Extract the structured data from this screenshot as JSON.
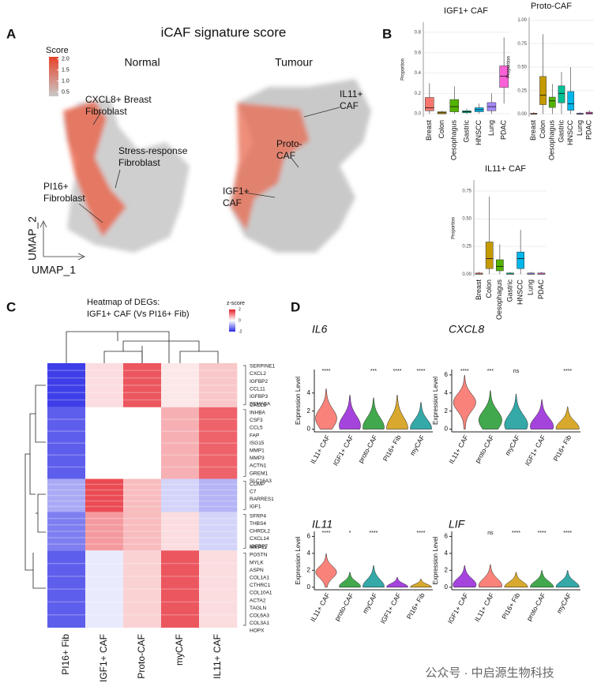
{
  "panel_labels": [
    "A",
    "B",
    "C",
    "D"
  ],
  "watermark": "公众号 · 中启源生物科技",
  "chart_data": [
    {
      "type": "scatter",
      "title": "iCAF signature score",
      "panels": [
        "Normal",
        "Tumour"
      ],
      "xlabel": "UMAP_1",
      "ylabel": "UMAP_2",
      "colorbar_title": "Score",
      "clim": [
        0.3,
        2.1
      ],
      "colorbar_ticks": [
        {
          "value": 0.5,
          "label": "0.5"
        },
        {
          "value": 1.0,
          "label": "1.0"
        },
        {
          "value": 1.5,
          "label": "1.5"
        },
        {
          "value": 2.0,
          "label": "2.0"
        }
      ],
      "colors": [
        "#c8c8c8",
        "#e8432a"
      ],
      "annotations": [
        [
          "CXCL8+ Breast",
          "Fibroblast"
        ],
        [
          "Stress-response",
          "Fibroblast"
        ],
        [
          "PI16+",
          "Fibroblast"
        ],
        [
          "IL11+",
          "CAF"
        ],
        [
          "Proto-",
          "CAF"
        ],
        [
          "IGF1+",
          "CAF"
        ]
      ]
    },
    {
      "type": "box",
      "title": "IGF1+ CAF",
      "ylabel": "Proportion",
      "categories": [
        "Breast",
        "Colon",
        "Oesophagus",
        "Gastric",
        "HNSCC",
        "Lung",
        "PDAC"
      ],
      "colors": [
        "#F8766D",
        "#C49A00",
        "#53B400",
        "#00C094",
        "#00B6EB",
        "#A58AFF",
        "#FB61D7"
      ],
      "ylim": [
        -0.03,
        0.9
      ],
      "yticks": [
        {
          "value": 0,
          "label": "0.0"
        },
        {
          "value": 0.2,
          "label": "0.2"
        },
        {
          "value": 0.4,
          "label": "0.4"
        },
        {
          "value": 0.6,
          "label": "0.6"
        },
        {
          "value": 0.8,
          "label": "0.8"
        }
      ],
      "whisker_low": [
        0,
        0,
        0,
        0,
        0,
        0,
        0.1
      ],
      "q1": [
        0.03,
        0,
        0.02,
        0.01,
        0.02,
        0.03,
        0.26
      ],
      "median": [
        0.06,
        0.01,
        0.07,
        0.02,
        0.04,
        0.07,
        0.37
      ],
      "q3": [
        0.16,
        0.02,
        0.14,
        0.03,
        0.06,
        0.11,
        0.47
      ],
      "whisker_high": [
        0.3,
        0.03,
        0.27,
        0.05,
        0.1,
        0.2,
        0.75
      ]
    },
    {
      "type": "box",
      "title": "Proto-CAF",
      "ylabel": "Proportion",
      "categories": [
        "Breast",
        "Colon",
        "Oesophagus",
        "Gastric",
        "HNSCC",
        "Lung",
        "PDAC"
      ],
      "colors": [
        "#F8766D",
        "#C49A00",
        "#53B400",
        "#00C094",
        "#00B6EB",
        "#A58AFF",
        "#FB61D7"
      ],
      "ylim": [
        -0.03,
        1.03
      ],
      "yticks": [
        {
          "value": 0,
          "label": "0.00"
        },
        {
          "value": 0.25,
          "label": "0.25"
        },
        {
          "value": 0.5,
          "label": "0.50"
        },
        {
          "value": 0.75,
          "label": "0.75"
        },
        {
          "value": 1,
          "label": "1.00"
        }
      ],
      "whisker_low": [
        0,
        0,
        0,
        0,
        0,
        0,
        0
      ],
      "q1": [
        0,
        0.1,
        0.07,
        0.12,
        0.04,
        0,
        0
      ],
      "median": [
        0,
        0.2,
        0.14,
        0.22,
        0.11,
        0,
        0.01
      ],
      "q3": [
        0.01,
        0.4,
        0.18,
        0.3,
        0.24,
        0.01,
        0.02
      ],
      "whisker_high": [
        0.02,
        0.85,
        0.32,
        0.45,
        0.5,
        0.02,
        0.04
      ]
    },
    {
      "type": "box",
      "title": "IL11+ CAF",
      "ylabel": "Proportion",
      "categories": [
        "Breast",
        "Colon",
        "Oesophagus",
        "Gastric",
        "HNSCC",
        "Lung",
        "PDAC"
      ],
      "colors": [
        "#F8766D",
        "#C49A00",
        "#53B400",
        "#00C094",
        "#00B6EB",
        "#A58AFF",
        "#FB61D7"
      ],
      "ylim": [
        -0.02,
        0.85
      ],
      "yticks": [
        {
          "value": 0,
          "label": "0.00"
        },
        {
          "value": 0.25,
          "label": "0.25"
        },
        {
          "value": 0.5,
          "label": "0.50"
        },
        {
          "value": 0.75,
          "label": "0.75"
        }
      ],
      "whisker_low": [
        0,
        0,
        0,
        0,
        0,
        0,
        0
      ],
      "q1": [
        0,
        0.05,
        0.03,
        0,
        0.05,
        0,
        0
      ],
      "median": [
        0,
        0.14,
        0.07,
        0,
        0.14,
        0,
        0
      ],
      "q3": [
        0.01,
        0.29,
        0.13,
        0.01,
        0.2,
        0.01,
        0.01
      ],
      "whisker_high": [
        0.02,
        0.7,
        0.27,
        0.02,
        0.4,
        0.02,
        0.02
      ]
    },
    {
      "type": "heatmap",
      "title": [
        "Heatmap of DEGs:",
        "IGF1+ CAF (Vs PI16+ Fib)"
      ],
      "columns": [
        "PI16+ Fib",
        "IGF1+ CAF",
        "Proto-CAF",
        "myCAF",
        "IL11+ CAF"
      ],
      "colorbar_title": "z-score",
      "zticks": [
        2,
        0,
        -2
      ],
      "row_clusters": [
        {
          "genes": [
            "SERPINE1",
            "CXCL2",
            "IGFBP2",
            "CCL11",
            "IGFBP3",
            "SEMA5A"
          ],
          "values": [
            -1.8,
            0.3,
            1.5,
            0.2,
            0.5
          ]
        },
        {
          "genes": [
            "CXCL8",
            "INHBA",
            "CSF3",
            "CCL5",
            "FAP",
            "ISG15",
            "MMP1",
            "MMP3",
            "ACTN1",
            "GREM1",
            "SLC16A3"
          ],
          "values": [
            -1.5,
            0,
            0,
            0.7,
            1.4
          ]
        },
        {
          "genes": [
            "COMP",
            "C7",
            "RARRES1",
            "IGF1"
          ],
          "values": [
            -0.8,
            1.6,
            0.6,
            -0.4,
            -0.7
          ]
        },
        {
          "genes": [
            "SFRP4",
            "THBS4",
            "CHRDL2",
            "CXCL14",
            "IGFBP7"
          ],
          "values": [
            -1.2,
            0.9,
            0.6,
            0.3,
            -0.4
          ]
        },
        {
          "genes": [
            "MMP11",
            "POSTN",
            "MYLK",
            "ASPN",
            "COL1A1",
            "CTHRC1",
            "COL10A1",
            "ACTA2",
            "TAGLN",
            "COL6A3",
            "COL3A1",
            "HOPX"
          ],
          "values": [
            -1.5,
            -0.2,
            0.4,
            1.5,
            0.3
          ]
        }
      ]
    },
    {
      "type": "violin",
      "title": "IL6",
      "ylabel": "Expression Level",
      "ylim": [
        -0.3,
        6.6
      ],
      "yticks": [
        0,
        2,
        4
      ],
      "categories": [
        "IL11+ CAF",
        "IGF1+ CAF",
        "proto-CAF",
        "PI16+ Fib",
        "myCAF"
      ],
      "colors": [
        "#F8766D",
        "#9B30D9",
        "#2E9E3A",
        "#D4A017",
        "#1F9E9E"
      ],
      "significance": [
        "****",
        null,
        "***",
        "****",
        "****"
      ],
      "values": [
        4.5,
        3.8,
        3.5,
        3.8,
        3.0
      ],
      "medians": [
        1.2,
        0.4,
        0.2,
        0.1,
        0.1
      ]
    },
    {
      "type": "violin",
      "title": "CXCL8",
      "ylabel": "Expression Level",
      "ylim": [
        -0.3,
        6.6
      ],
      "yticks": [
        0,
        2,
        4,
        6
      ],
      "categories": [
        "IL11+ CAF",
        "proto-CAF",
        "myCAF",
        "IGF1+ CAF",
        "PI16+ Fib"
      ],
      "colors": [
        "#F8766D",
        "#2E9E3A",
        "#1F9E9E",
        "#9B30D9",
        "#D4A017"
      ],
      "significance": [
        "****",
        "***",
        "ns",
        null,
        "****"
      ],
      "values": [
        6.0,
        4.3,
        3.9,
        3.3,
        2.5
      ],
      "medians": [
        3.0,
        1.0,
        0.5,
        0.3,
        0.1
      ]
    },
    {
      "type": "violin",
      "title": "IL11",
      "ylabel": "Expression Level",
      "ylim": [
        -0.3,
        6.6
      ],
      "yticks": [
        0,
        2,
        4,
        6
      ],
      "categories": [
        "IL11+ CAF",
        "proto-CAF",
        "myCAF",
        "IGF1+ CAF",
        "PI16+ Fib"
      ],
      "colors": [
        "#F8766D",
        "#2E9E3A",
        "#1F9E9E",
        "#9B30D9",
        "#D4A017"
      ],
      "significance": [
        "****",
        "*",
        "****",
        null,
        "****"
      ],
      "values": [
        4.0,
        1.8,
        2.6,
        1.2,
        1.0
      ],
      "medians": [
        1.8,
        0.1,
        0.1,
        0.05,
        0.02
      ]
    },
    {
      "type": "violin",
      "title": "LIF",
      "ylabel": "Expression Level",
      "ylim": [
        -0.3,
        6.6
      ],
      "yticks": [
        0,
        2,
        4,
        6
      ],
      "categories": [
        "IGF1+ CAF",
        "IL11+ CAF",
        "PI16+ Fib",
        "proto-CAF",
        "myCAF"
      ],
      "colors": [
        "#9B30D9",
        "#F8766D",
        "#D4A017",
        "#2E9E3A",
        "#1F9E9E"
      ],
      "significance": [
        null,
        "ns",
        "****",
        "****",
        "****"
      ],
      "values": [
        2.6,
        2.7,
        1.8,
        2.0,
        2.0
      ],
      "medians": [
        0.3,
        0.2,
        0.05,
        0.05,
        0.05
      ]
    }
  ]
}
